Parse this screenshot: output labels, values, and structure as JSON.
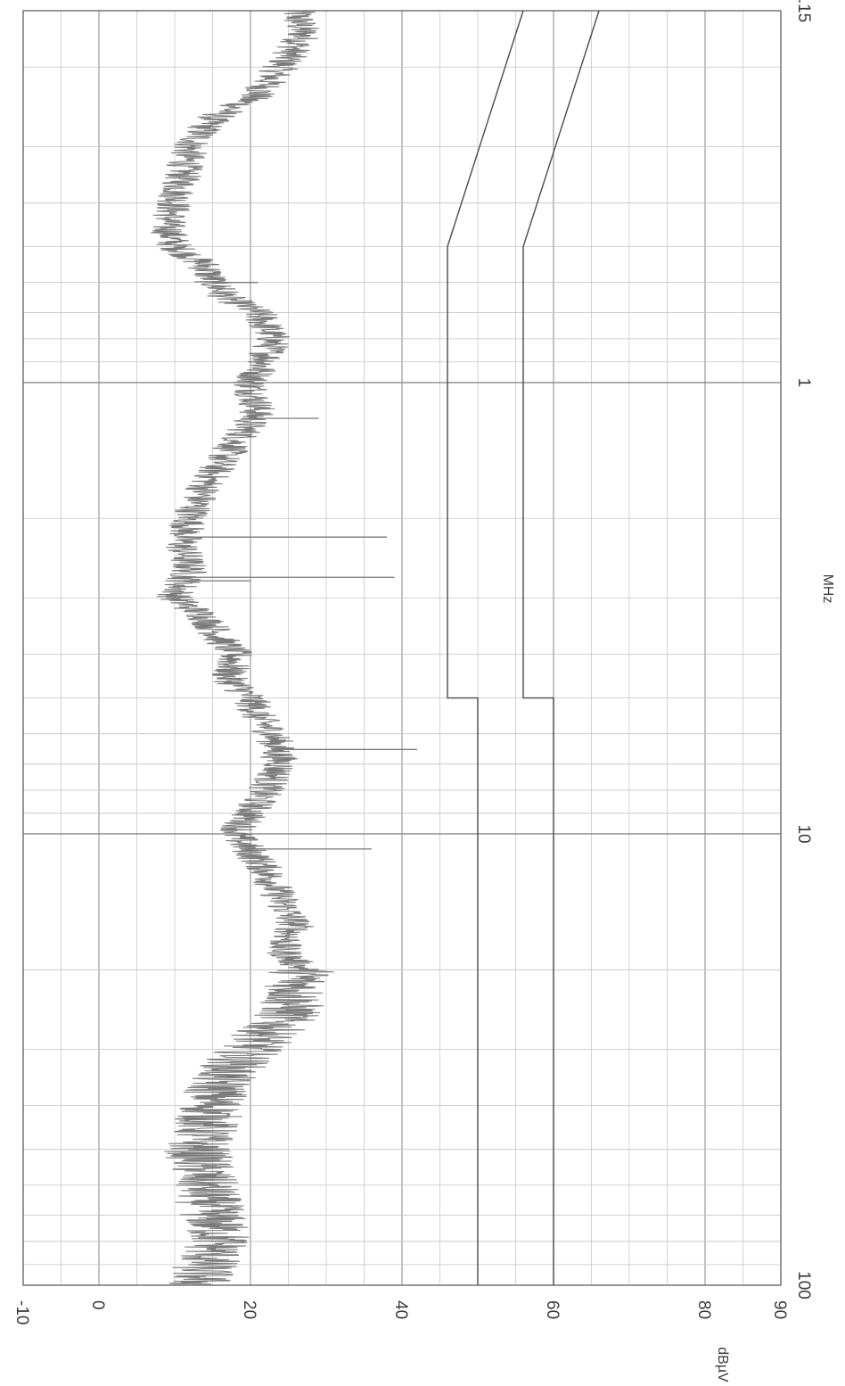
{
  "chart_data": {
    "type": "line",
    "title": "",
    "xlabel": "MHz",
    "ylabel": "dBµV",
    "x_scale": "log",
    "xlim": [
      0.15,
      100
    ],
    "ylim": [
      -10,
      90
    ],
    "grid": true,
    "orientation": "rotated 90° clockwise",
    "x_tick_labels": [
      {
        "value": 0.15,
        "label": ".15"
      },
      {
        "value": 1,
        "label": "1"
      },
      {
        "value": 10,
        "label": "10"
      },
      {
        "value": 100,
        "label": "100"
      }
    ],
    "y_tick_labels": [
      {
        "value": -10,
        "label": "-10"
      },
      {
        "value": 0,
        "label": "0"
      },
      {
        "value": 20,
        "label": "20"
      },
      {
        "value": 40,
        "label": "40"
      },
      {
        "value": 60,
        "label": "60"
      },
      {
        "value": 80,
        "label": "80"
      },
      {
        "value": 90,
        "label": "90"
      }
    ],
    "series": [
      {
        "color": "#7a7a7a",
        "x": [
          0.15,
          0.17,
          0.2,
          0.23,
          0.26,
          0.3,
          0.35,
          0.4,
          0.45,
          0.5,
          0.55,
          0.6,
          0.65,
          0.7,
          0.8,
          0.9,
          1.0,
          1.15,
          1.3,
          1.5,
          1.7,
          2.0,
          2.3,
          2.6,
          3.0,
          3.3,
          3.7,
          4.0,
          4.5,
          5.0,
          5.5,
          6.0,
          7.0,
          8.0,
          9.0,
          10,
          12,
          14,
          16,
          18,
          20,
          25,
          30,
          35,
          40,
          45,
          50,
          60,
          70,
          80,
          90,
          100
        ],
        "y": [
          26,
          27,
          24,
          21,
          15,
          12,
          11,
          10,
          9,
          10,
          14,
          15,
          17,
          21,
          23,
          22,
          20,
          21,
          19,
          16,
          14,
          12,
          11,
          12,
          10,
          14,
          16,
          18,
          17,
          20,
          21,
          23,
          24,
          22,
          20,
          18,
          22,
          24,
          26,
          24,
          27,
          25,
          20,
          16,
          15,
          14,
          13,
          14,
          15,
          16,
          14,
          13
        ]
      },
      {
        "color": "#4a4a4a",
        "x": [
          0.15,
          0.5,
          5.0,
          5.0,
          100
        ],
        "y": [
          56,
          46,
          46,
          50,
          50
        ]
      },
      {
        "color": "#4a4a4a",
        "x": [
          0.15,
          0.5,
          5.0,
          5.0,
          100
        ],
        "y": [
          66,
          56,
          56,
          60,
          60
        ]
      }
    ],
    "spikes": [
      {
        "x": 0.6,
        "y": 21
      },
      {
        "x": 0.62,
        "y": 18
      },
      {
        "x": 0.72,
        "y": 23
      },
      {
        "x": 1.2,
        "y": 29
      },
      {
        "x": 2.2,
        "y": 38
      },
      {
        "x": 2.7,
        "y": 39
      },
      {
        "x": 2.75,
        "y": 20
      },
      {
        "x": 6.5,
        "y": 42
      },
      {
        "x": 10.8,
        "y": 36
      }
    ]
  }
}
